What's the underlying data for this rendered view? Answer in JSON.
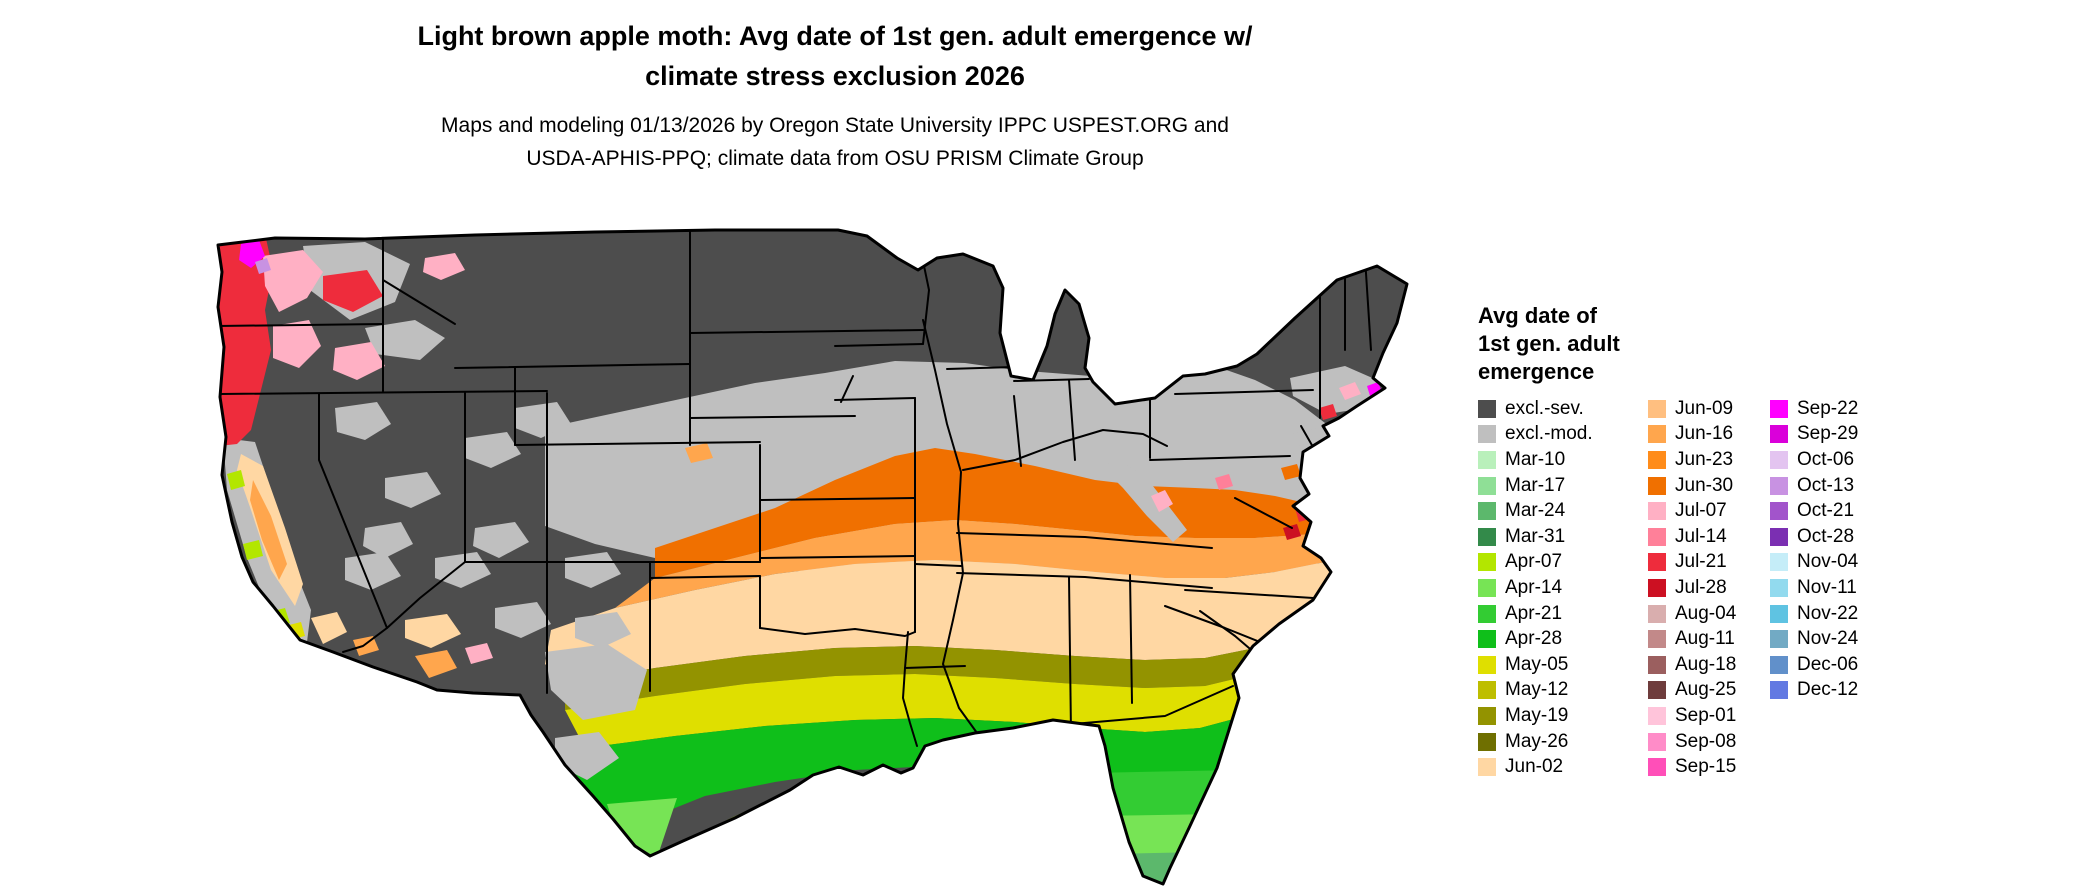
{
  "header": {
    "title_line1": "Light brown apple moth: Avg date of 1st gen. adult emergence w/",
    "title_line2": "climate stress exclusion 2026",
    "subtitle_line1": "Maps and modeling 01/13/2026 by Oregon State University IPPC USPEST.ORG and",
    "subtitle_line2": "USDA-APHIS-PPQ; climate data from OSU PRISM Climate Group"
  },
  "legend": {
    "title_line1": "Avg date of",
    "title_line2": "1st gen. adult",
    "title_line3": "emergence",
    "columns": [
      [
        {
          "label": "excl.-sev.",
          "color": "#4d4d4d"
        },
        {
          "label": "excl.-mod.",
          "color": "#bfbfbf"
        },
        {
          "label": "Mar-10",
          "color": "#b9f0bb"
        },
        {
          "label": "Mar-17",
          "color": "#8fdf96"
        },
        {
          "label": "Mar-24",
          "color": "#5cb86c"
        },
        {
          "label": "Mar-31",
          "color": "#338a4a"
        },
        {
          "label": "Apr-07",
          "color": "#b3e600"
        },
        {
          "label": "Apr-14",
          "color": "#77e455"
        },
        {
          "label": "Apr-21",
          "color": "#33cc33"
        },
        {
          "label": "Apr-28",
          "color": "#0fbf1a"
        },
        {
          "label": "May-05",
          "color": "#dfdf00"
        },
        {
          "label": "May-12",
          "color": "#bebe00"
        },
        {
          "label": "May-19",
          "color": "#939300"
        },
        {
          "label": "May-26",
          "color": "#6f6f00"
        },
        {
          "label": "Jun-02",
          "color": "#ffd7a3"
        }
      ],
      [
        {
          "label": "Jun-09",
          "color": "#ffbf80"
        },
        {
          "label": "Jun-16",
          "color": "#ffa64d"
        },
        {
          "label": "Jun-23",
          "color": "#ff8c1a"
        },
        {
          "label": "Jun-30",
          "color": "#f07000"
        },
        {
          "label": "Jul-07",
          "color": "#ffb0c4"
        },
        {
          "label": "Jul-14",
          "color": "#ff8099"
        },
        {
          "label": "Jul-21",
          "color": "#ee2c3c"
        },
        {
          "label": "Jul-28",
          "color": "#cc1022"
        },
        {
          "label": "Aug-04",
          "color": "#d9aeae"
        },
        {
          "label": "Aug-11",
          "color": "#c28989"
        },
        {
          "label": "Aug-18",
          "color": "#9b5f5f"
        },
        {
          "label": "Aug-25",
          "color": "#6e3c3c"
        },
        {
          "label": "Sep-01",
          "color": "#ffc4da"
        },
        {
          "label": "Sep-08",
          "color": "#ff8cc8"
        },
        {
          "label": "Sep-15",
          "color": "#ff4fb8"
        }
      ],
      [
        {
          "label": "Sep-22",
          "color": "#ff00ff"
        },
        {
          "label": "Sep-29",
          "color": "#da00da"
        },
        {
          "label": "Oct-06",
          "color": "#e3c4f0"
        },
        {
          "label": "Oct-13",
          "color": "#c892e2"
        },
        {
          "label": "Oct-21",
          "color": "#a254cb"
        },
        {
          "label": "Oct-28",
          "color": "#7b2fb2"
        },
        {
          "label": "Nov-04",
          "color": "#c5edf8"
        },
        {
          "label": "Nov-11",
          "color": "#92daee"
        },
        {
          "label": "Nov-22",
          "color": "#5fc3e2"
        },
        {
          "label": "Nov-24",
          "color": "#72aac4"
        },
        {
          "label": "Dec-06",
          "color": "#6190ca"
        },
        {
          "label": "Dec-12",
          "color": "#6279e2"
        }
      ]
    ]
  },
  "map": {
    "name": "Contiguous United States raster choropleth with state borders",
    "base_class": "excl.-sev.",
    "notes": "Northern and mountain-west states largely excluded (dark gray); moderate exclusion band (light gray) through the central plains, upper midwest and coasts; emergence dates grade from late June/orange through the Ohio/Kentucky/Virginia belt, peach and yellow across the southern plains and deep south, to April greens along the Gulf coast and Florida, March greens at the south Florida tip; July reds along the Pacific Northwest coast; June oranges in California's Central Valley and southern Arizona."
  },
  "chart_data": {
    "type": "heatmap",
    "title": "Light brown apple moth: Avg date of 1st gen. adult emergence w/ climate stress exclusion 2026",
    "legend_title": "Avg date of 1st gen. adult emergence",
    "legend_position": "right",
    "categories": [
      "excl.-sev.",
      "excl.-mod.",
      "Mar-10",
      "Mar-17",
      "Mar-24",
      "Mar-31",
      "Apr-07",
      "Apr-14",
      "Apr-21",
      "Apr-28",
      "May-05",
      "May-12",
      "May-19",
      "May-26",
      "Jun-02",
      "Jun-09",
      "Jun-16",
      "Jun-23",
      "Jun-30",
      "Jul-07",
      "Jul-14",
      "Jul-21",
      "Jul-28",
      "Aug-04",
      "Aug-11",
      "Aug-18",
      "Aug-25",
      "Sep-01",
      "Sep-08",
      "Sep-15",
      "Sep-22",
      "Sep-29",
      "Oct-06",
      "Oct-13",
      "Oct-21",
      "Oct-28",
      "Nov-04",
      "Nov-11",
      "Nov-22",
      "Nov-24",
      "Dec-06",
      "Dec-12"
    ]
  }
}
